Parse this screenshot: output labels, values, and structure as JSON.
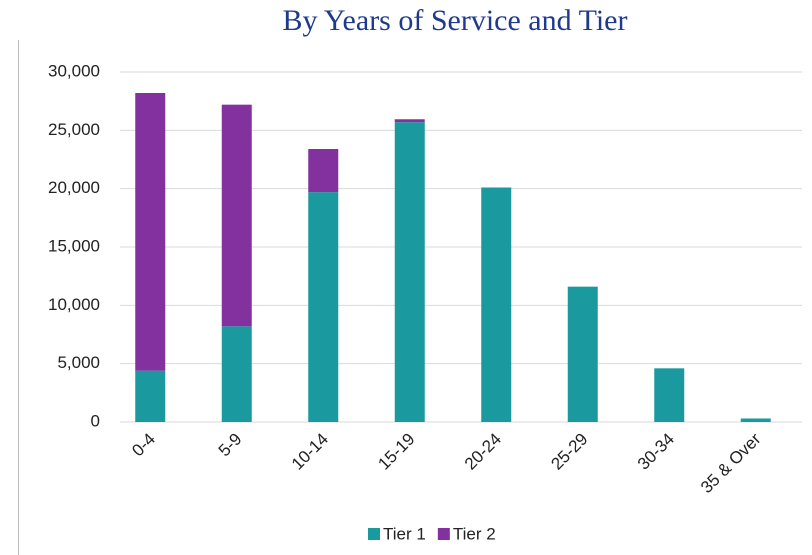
{
  "chart_data": {
    "type": "stacked_bar",
    "title": "By Years of Service and Tier",
    "categories": [
      "0-4",
      "5-9",
      "10-14",
      "15-19",
      "20-24",
      "25-29",
      "30-34",
      "35 & Over"
    ],
    "series": [
      {
        "name": "Tier 1",
        "color": "#1a9a9e",
        "values": [
          4400,
          8200,
          19700,
          25700,
          20100,
          11600,
          4600,
          300
        ]
      },
      {
        "name": "Tier 2",
        "color": "#8431a0",
        "values": [
          23800,
          19000,
          3700,
          250,
          0,
          0,
          0,
          0
        ]
      }
    ],
    "ylim": [
      0,
      30000
    ],
    "yticks": [
      0,
      {
        "value": 5000,
        "label": "5,000"
      },
      {
        "value": 10000,
        "label": "10,000"
      },
      {
        "value": 15000,
        "label": "15,000"
      },
      {
        "value": 20000,
        "label": "20,000"
      },
      {
        "value": 25000,
        "label": "25,000"
      },
      {
        "value": 30000,
        "label": "30,000"
      }
    ],
    "grid": true,
    "legend": "bottom"
  }
}
